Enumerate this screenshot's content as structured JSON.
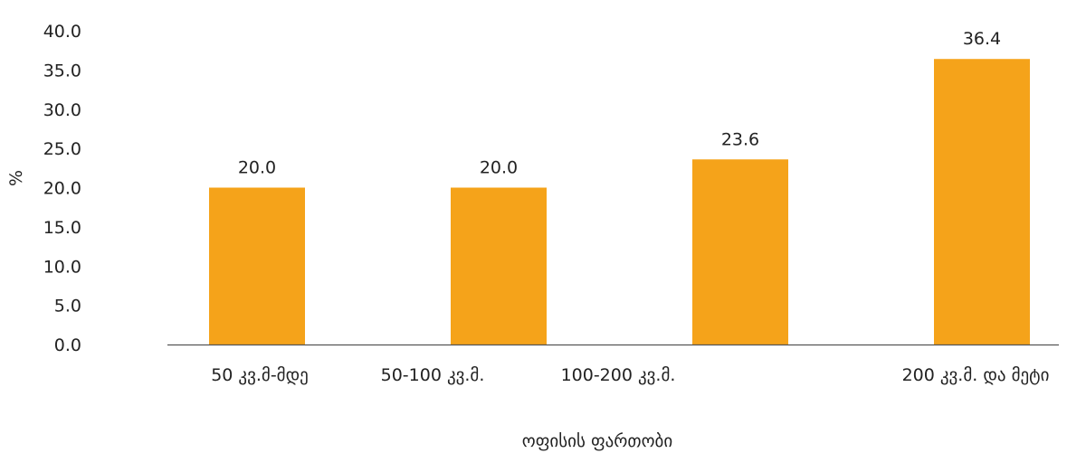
{
  "chart_data": {
    "type": "bar",
    "categories": [
      "50 კვ.მ-მდე",
      "50-100 კვ.მ.",
      "100-200 კვ.მ.",
      "200 კვ.მ. და მეტი"
    ],
    "values": [
      20.0,
      20.0,
      23.6,
      36.4
    ],
    "value_labels": [
      "20.0",
      "20.0",
      "23.6",
      "36.4"
    ],
    "xlabel": "ოფისის ფართობი",
    "ylabel": "%",
    "ylim": [
      0,
      40
    ],
    "yticks": [
      "0.0",
      "5.0",
      "10.0",
      "15.0",
      "20.0",
      "25.0",
      "30.0",
      "35.0",
      "40.0"
    ],
    "bar_color": "#F5A31A",
    "axis_color": "#555555",
    "grid": false,
    "legend": "none"
  }
}
